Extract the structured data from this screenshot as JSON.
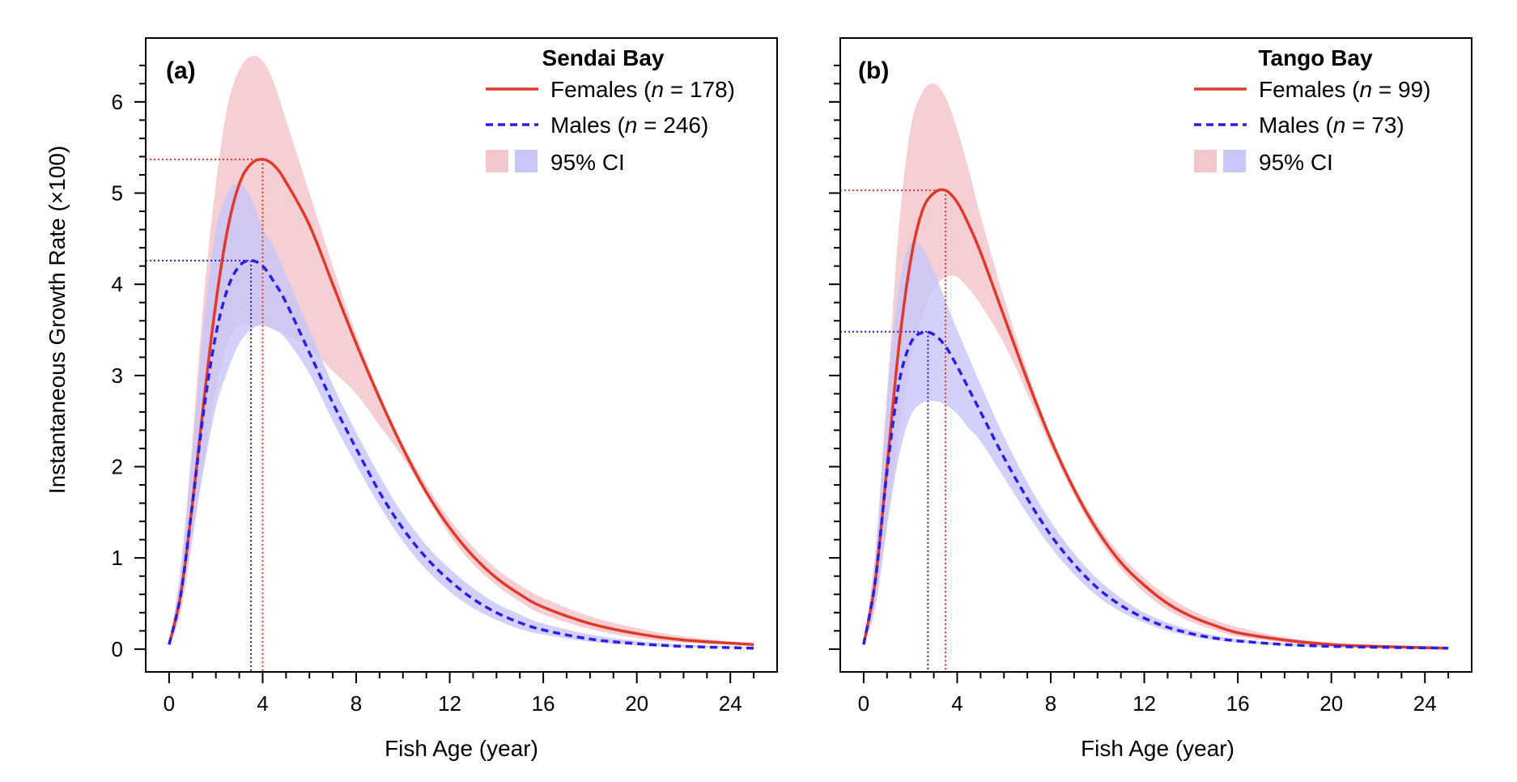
{
  "figure": {
    "ylabel": "Instantaneous Growth Rate (×100)",
    "xlabel": "Fish Age (year)"
  },
  "legend": {
    "females_label": "Females",
    "males_label": "Males",
    "ci_label": "95% CI",
    "n_symbol": "n",
    "n_separator": " = "
  },
  "colors": {
    "female_line": "#e0392b",
    "female_band": "#f3c7cb",
    "male_line": "#2a1ee8",
    "male_band": "#c8c6fa"
  },
  "chart_data": [
    {
      "type": "line",
      "panel": "(a)",
      "title": "Sendai Bay",
      "xlabel": "Fish Age (year)",
      "ylabel": "Instantaneous Growth Rate (×100)",
      "xlim": [
        -1,
        26
      ],
      "ylim": [
        -0.25,
        6.7
      ],
      "xticks": [
        0,
        4,
        8,
        12,
        16,
        20,
        24
      ],
      "yticks": [
        0,
        1,
        2,
        3,
        4,
        5,
        6
      ],
      "series": [
        {
          "name": "Females",
          "n": "178",
          "style": "solid",
          "peak": {
            "x": 4.0,
            "y": 5.37
          },
          "x": [
            0,
            0.5,
            1,
            1.5,
            2,
            2.5,
            3,
            3.5,
            4,
            4.5,
            5,
            6,
            7,
            8,
            9,
            10,
            11,
            12,
            13,
            14,
            15,
            16,
            18,
            20,
            22,
            25
          ],
          "y": [
            0.05,
            0.6,
            1.6,
            2.75,
            3.8,
            4.6,
            5.1,
            5.32,
            5.37,
            5.3,
            5.12,
            4.65,
            4.0,
            3.35,
            2.75,
            2.2,
            1.72,
            1.33,
            1.02,
            0.78,
            0.6,
            0.46,
            0.28,
            0.17,
            0.1,
            0.05
          ],
          "ci_upper": [
            0.06,
            0.9,
            2.3,
            3.9,
            5.1,
            5.95,
            6.35,
            6.5,
            6.45,
            6.2,
            5.8,
            5.0,
            4.2,
            3.45,
            2.8,
            2.25,
            1.8,
            1.42,
            1.12,
            0.88,
            0.7,
            0.56,
            0.36,
            0.23,
            0.14,
            0.06
          ],
          "ci_lower": [
            0.04,
            0.4,
            1.2,
            2.05,
            2.85,
            3.35,
            3.55,
            3.55,
            3.55,
            3.5,
            3.45,
            3.3,
            3.05,
            2.8,
            2.45,
            2.1,
            1.68,
            1.25,
            0.93,
            0.7,
            0.52,
            0.38,
            0.22,
            0.12,
            0.07,
            0.04
          ]
        },
        {
          "name": "Males",
          "n": "246",
          "style": "dashed",
          "peak": {
            "x": 3.5,
            "y": 4.26
          },
          "x": [
            0,
            0.5,
            1,
            1.5,
            2,
            2.5,
            3,
            3.5,
            4,
            4.5,
            5,
            6,
            7,
            8,
            9,
            10,
            11,
            12,
            13,
            14,
            15,
            16,
            18,
            20,
            22,
            25
          ],
          "y": [
            0.05,
            0.6,
            1.6,
            2.65,
            3.45,
            3.95,
            4.2,
            4.26,
            4.2,
            4.02,
            3.8,
            3.25,
            2.7,
            2.2,
            1.72,
            1.32,
            1.0,
            0.75,
            0.55,
            0.4,
            0.29,
            0.21,
            0.11,
            0.06,
            0.03,
            0.01
          ],
          "ci_upper": [
            0.06,
            0.85,
            2.2,
            3.6,
            4.6,
            5.0,
            5.1,
            4.95,
            4.62,
            4.4,
            4.1,
            3.5,
            2.9,
            2.38,
            1.9,
            1.48,
            1.14,
            0.88,
            0.67,
            0.5,
            0.38,
            0.28,
            0.16,
            0.09,
            0.05,
            0.02
          ],
          "ci_lower": [
            0.04,
            0.5,
            1.25,
            2.0,
            2.65,
            3.05,
            3.35,
            3.5,
            3.55,
            3.5,
            3.4,
            3.02,
            2.5,
            2.02,
            1.57,
            1.18,
            0.87,
            0.63,
            0.45,
            0.32,
            0.22,
            0.16,
            0.08,
            0.04,
            0.02,
            0.01
          ]
        }
      ]
    },
    {
      "type": "line",
      "panel": "(b)",
      "title": "Tango Bay",
      "xlabel": "Fish Age (year)",
      "ylabel": "",
      "xlim": [
        -1,
        26
      ],
      "ylim": [
        -0.25,
        6.7
      ],
      "xticks": [
        0,
        4,
        8,
        12,
        16,
        20,
        24
      ],
      "yticks": [
        0,
        1,
        2,
        3,
        4,
        5,
        6
      ],
      "series": [
        {
          "name": "Females",
          "n": "99",
          "style": "solid",
          "peak": {
            "x": 3.5,
            "y": 5.03
          },
          "x": [
            0,
            0.5,
            1,
            1.5,
            2,
            2.5,
            3,
            3.5,
            4,
            4.5,
            5,
            6,
            7,
            8,
            9,
            10,
            11,
            12,
            13,
            14,
            15,
            16,
            18,
            20,
            22,
            25
          ],
          "y": [
            0.05,
            0.75,
            2.0,
            3.3,
            4.25,
            4.8,
            5.0,
            5.03,
            4.9,
            4.65,
            4.35,
            3.65,
            2.95,
            2.3,
            1.75,
            1.3,
            0.95,
            0.7,
            0.5,
            0.36,
            0.26,
            0.18,
            0.1,
            0.05,
            0.03,
            0.01
          ],
          "ci_upper": [
            0.06,
            1.05,
            2.8,
            4.6,
            5.7,
            6.1,
            6.2,
            6.05,
            5.7,
            5.25,
            4.75,
            3.85,
            3.05,
            2.35,
            1.8,
            1.37,
            1.03,
            0.78,
            0.58,
            0.43,
            0.32,
            0.24,
            0.13,
            0.07,
            0.04,
            0.02
          ],
          "ci_lower": [
            0.04,
            0.45,
            1.35,
            2.35,
            3.15,
            3.65,
            3.95,
            4.08,
            4.08,
            3.95,
            3.78,
            3.35,
            2.8,
            2.22,
            1.69,
            1.23,
            0.88,
            0.62,
            0.43,
            0.3,
            0.21,
            0.14,
            0.07,
            0.03,
            0.02,
            0.01
          ]
        },
        {
          "name": "Males",
          "n": "73",
          "style": "dashed",
          "peak": {
            "x": 2.75,
            "y": 3.48
          },
          "x": [
            0,
            0.5,
            1,
            1.5,
            2,
            2.5,
            3,
            3.5,
            4,
            4.5,
            5,
            6,
            7,
            8,
            9,
            10,
            11,
            12,
            13,
            14,
            15,
            16,
            18,
            20,
            22,
            25
          ],
          "y": [
            0.05,
            0.75,
            1.95,
            2.9,
            3.35,
            3.47,
            3.45,
            3.32,
            3.1,
            2.85,
            2.6,
            2.1,
            1.65,
            1.25,
            0.93,
            0.67,
            0.48,
            0.34,
            0.24,
            0.17,
            0.12,
            0.09,
            0.05,
            0.03,
            0.02,
            0.01
          ],
          "ci_upper": [
            0.06,
            1.05,
            2.75,
            3.95,
            4.45,
            4.4,
            4.15,
            3.82,
            3.5,
            3.2,
            2.9,
            2.33,
            1.83,
            1.4,
            1.05,
            0.77,
            0.56,
            0.4,
            0.29,
            0.21,
            0.15,
            0.11,
            0.06,
            0.04,
            0.02,
            0.01
          ],
          "ci_lower": [
            0.04,
            0.5,
            1.35,
            2.1,
            2.55,
            2.7,
            2.72,
            2.68,
            2.58,
            2.42,
            2.28,
            1.88,
            1.48,
            1.12,
            0.82,
            0.58,
            0.41,
            0.29,
            0.2,
            0.14,
            0.1,
            0.07,
            0.04,
            0.02,
            0.01,
            0.01
          ]
        }
      ]
    }
  ]
}
